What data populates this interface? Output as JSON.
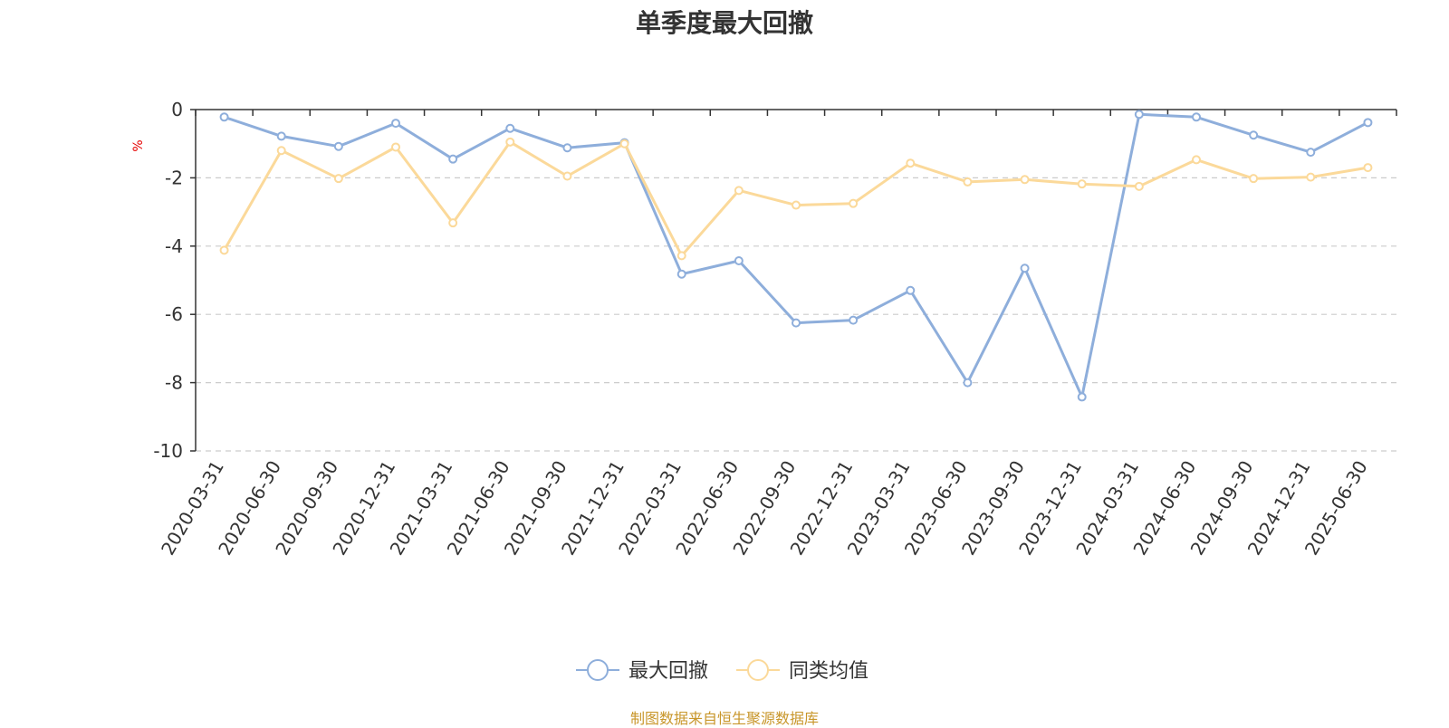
{
  "chart_data": {
    "type": "line",
    "title": "单季度最大回撤",
    "ylabel": "%",
    "ylim": [
      -10,
      0
    ],
    "yticks": [
      0,
      -2,
      -4,
      -6,
      -8,
      -10
    ],
    "grid": true,
    "legend_position": "bottom",
    "categories": [
      "2020-03-31",
      "2020-06-30",
      "2020-09-30",
      "2020-12-31",
      "2021-03-31",
      "2021-06-30",
      "2021-09-30",
      "2021-12-31",
      "2022-03-31",
      "2022-06-30",
      "2022-09-30",
      "2022-12-31",
      "2023-03-31",
      "2023-06-30",
      "2023-09-30",
      "2023-12-31",
      "2024-03-31",
      "2024-06-30",
      "2024-09-30",
      "2024-12-31",
      "2025-06-30"
    ],
    "series": [
      {
        "name": "最大回撤",
        "color": "#8eaedb",
        "values": [
          -0.22,
          -0.78,
          -1.08,
          -0.4,
          -1.45,
          -0.55,
          -1.12,
          -0.97,
          -4.82,
          -4.43,
          -6.25,
          -6.17,
          -5.3,
          -8.0,
          -4.65,
          -8.42,
          -0.14,
          -0.22,
          -0.75,
          -1.25,
          -0.38
        ]
      },
      {
        "name": "同类均值",
        "color": "#fbd99a",
        "values": [
          -4.12,
          -1.2,
          -2.02,
          -1.1,
          -3.32,
          -0.95,
          -1.95,
          -1.0,
          -4.28,
          -2.37,
          -2.8,
          -2.75,
          -1.57,
          -2.12,
          -2.05,
          -2.18,
          -2.25,
          -1.47,
          -2.02,
          -1.98,
          -1.7
        ]
      }
    ]
  },
  "source_note": "制图数据来自恒生聚源数据库"
}
